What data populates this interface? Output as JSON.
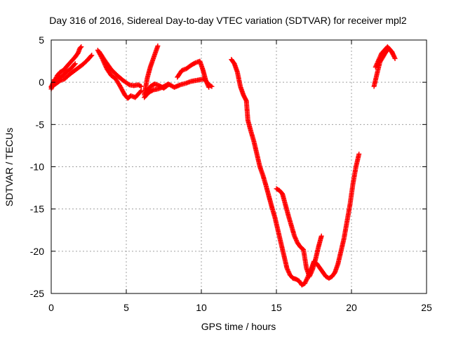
{
  "chart_data": {
    "type": "scatter",
    "title": "Day 316 of 2016, Sidereal Day-to-day VTEC variation (SDTVAR) for receiver mpl2",
    "xlabel": "GPS time / hours",
    "ylabel": "SDTVAR / TECUs",
    "xlim": [
      0,
      25
    ],
    "ylim": [
      -25,
      5
    ],
    "xticks": [
      "0",
      "5",
      "10",
      "15",
      "20",
      "25"
    ],
    "yticks": [
      "5",
      "0",
      "-5",
      "-10",
      "-15",
      "-20",
      "-25"
    ],
    "grid": true,
    "legend": "none",
    "marker": "plus",
    "color": "#ff0000",
    "series": [
      {
        "x": [
          0.0,
          0.2,
          0.4,
          0.6,
          0.8,
          1.0,
          1.2,
          1.4,
          1.6,
          1.8,
          1.9,
          2.0
        ],
        "y": [
          -0.8,
          0.0,
          0.8,
          1.2,
          1.4,
          1.8,
          2.2,
          2.6,
          3.0,
          3.5,
          4.0,
          4.2
        ]
      },
      {
        "x": [
          0.0,
          0.3,
          0.6,
          0.9,
          1.2,
          1.5,
          1.8,
          2.1,
          2.4,
          2.7
        ],
        "y": [
          -0.5,
          -0.2,
          0.2,
          0.4,
          0.9,
          1.3,
          1.7,
          2.1,
          2.6,
          3.2
        ]
      },
      {
        "x": [
          0.0,
          0.2,
          0.5,
          0.8,
          1.0,
          1.3,
          1.6
        ],
        "y": [
          -0.6,
          0.3,
          0.5,
          0.8,
          1.2,
          1.6,
          2.2
        ]
      },
      {
        "x": [
          3.1,
          3.4,
          3.7,
          4.0,
          4.3,
          4.6,
          4.9,
          5.1,
          5.3,
          5.6,
          5.8,
          6.0
        ],
        "y": [
          3.8,
          2.8,
          1.6,
          0.8,
          0.4,
          -0.5,
          -1.5,
          -1.9,
          -1.6,
          -1.8,
          -1.4,
          -1.0
        ]
      },
      {
        "x": [
          3.2,
          3.6,
          4.0,
          4.4,
          4.8,
          5.2,
          5.5,
          5.8,
          6.0
        ],
        "y": [
          3.6,
          2.5,
          1.5,
          0.8,
          0.2,
          -0.3,
          -0.4,
          -0.3,
          -0.5
        ]
      },
      {
        "x": [
          6.2,
          6.4,
          6.6,
          6.8,
          7.0,
          7.1
        ],
        "y": [
          -1.5,
          0.5,
          1.8,
          2.8,
          3.8,
          4.3
        ]
      },
      {
        "x": [
          6.2,
          6.5,
          6.8,
          7.1,
          7.4,
          7.8,
          8.2,
          8.6,
          9.0,
          9.3,
          9.6,
          9.9,
          10.2,
          10.5,
          10.7
        ],
        "y": [
          -1.8,
          -1.2,
          -0.9,
          -0.8,
          -0.6,
          -0.2,
          -0.6,
          -0.3,
          -0.1,
          0.1,
          0.2,
          0.3,
          0.4,
          -0.3,
          -0.5
        ]
      },
      {
        "x": [
          8.4,
          8.7,
          9.0,
          9.3,
          9.6,
          9.9,
          10.1,
          10.3,
          10.5
        ],
        "y": [
          0.6,
          1.4,
          1.6,
          2.0,
          2.3,
          2.5,
          1.5,
          0.2,
          -0.6
        ]
      },
      {
        "x": [
          6.3,
          6.6,
          6.9,
          7.2,
          7.5,
          7.8
        ],
        "y": [
          -1.2,
          -0.5,
          -0.2,
          -0.4,
          -0.7,
          -0.3
        ]
      },
      {
        "x": [
          12.0,
          12.2,
          12.4,
          12.6,
          12.8,
          13.0,
          13.1,
          13.3,
          13.5,
          13.7,
          13.9,
          14.1,
          14.3,
          14.5,
          14.7,
          14.9,
          15.1,
          15.3,
          15.5,
          15.7,
          15.9,
          16.1,
          16.3,
          16.5,
          16.7,
          16.9,
          17.1,
          17.3,
          17.5,
          17.7,
          17.9,
          18.1,
          18.3,
          18.5,
          18.7,
          18.9,
          19.1,
          19.3,
          19.5,
          19.7,
          19.9,
          20.1,
          20.3,
          20.5
        ],
        "y": [
          2.7,
          2.2,
          1.2,
          -0.5,
          -1.5,
          -2.2,
          -4.5,
          -5.8,
          -7.0,
          -8.5,
          -10.0,
          -11.0,
          -12.2,
          -13.5,
          -14.8,
          -16.0,
          -17.5,
          -19.0,
          -20.5,
          -22.0,
          -22.8,
          -23.2,
          -23.3,
          -23.5,
          -24.0,
          -23.8,
          -23.0,
          -22.2,
          -21.2,
          -21.5,
          -22.0,
          -22.5,
          -23.0,
          -23.2,
          -23.0,
          -22.5,
          -21.5,
          -20.0,
          -18.5,
          -16.5,
          -14.5,
          -12.0,
          -10.0,
          -8.5
        ]
      },
      {
        "x": [
          15.0,
          15.2,
          15.4,
          15.6,
          15.8,
          16.0,
          16.2,
          16.4,
          16.6,
          16.8,
          17.0,
          17.2,
          17.4,
          17.6,
          17.8,
          18.0
        ],
        "y": [
          -12.6,
          -12.8,
          -13.2,
          -14.5,
          -15.8,
          -17.0,
          -18.2,
          -19.0,
          -19.5,
          -19.8,
          -22.0,
          -23.0,
          -22.2,
          -21.0,
          -19.5,
          -18.2
        ]
      },
      {
        "x": [
          21.5,
          21.7,
          21.9,
          22.1,
          22.3,
          22.5,
          22.7,
          22.9
        ],
        "y": [
          -0.5,
          1.0,
          2.4,
          3.0,
          3.6,
          4.0,
          3.6,
          2.8
        ]
      },
      {
        "x": [
          21.6,
          21.8,
          22.0,
          22.2,
          22.4,
          22.6,
          22.8
        ],
        "y": [
          1.8,
          2.6,
          3.4,
          3.8,
          4.2,
          3.8,
          3.2
        ]
      }
    ]
  }
}
